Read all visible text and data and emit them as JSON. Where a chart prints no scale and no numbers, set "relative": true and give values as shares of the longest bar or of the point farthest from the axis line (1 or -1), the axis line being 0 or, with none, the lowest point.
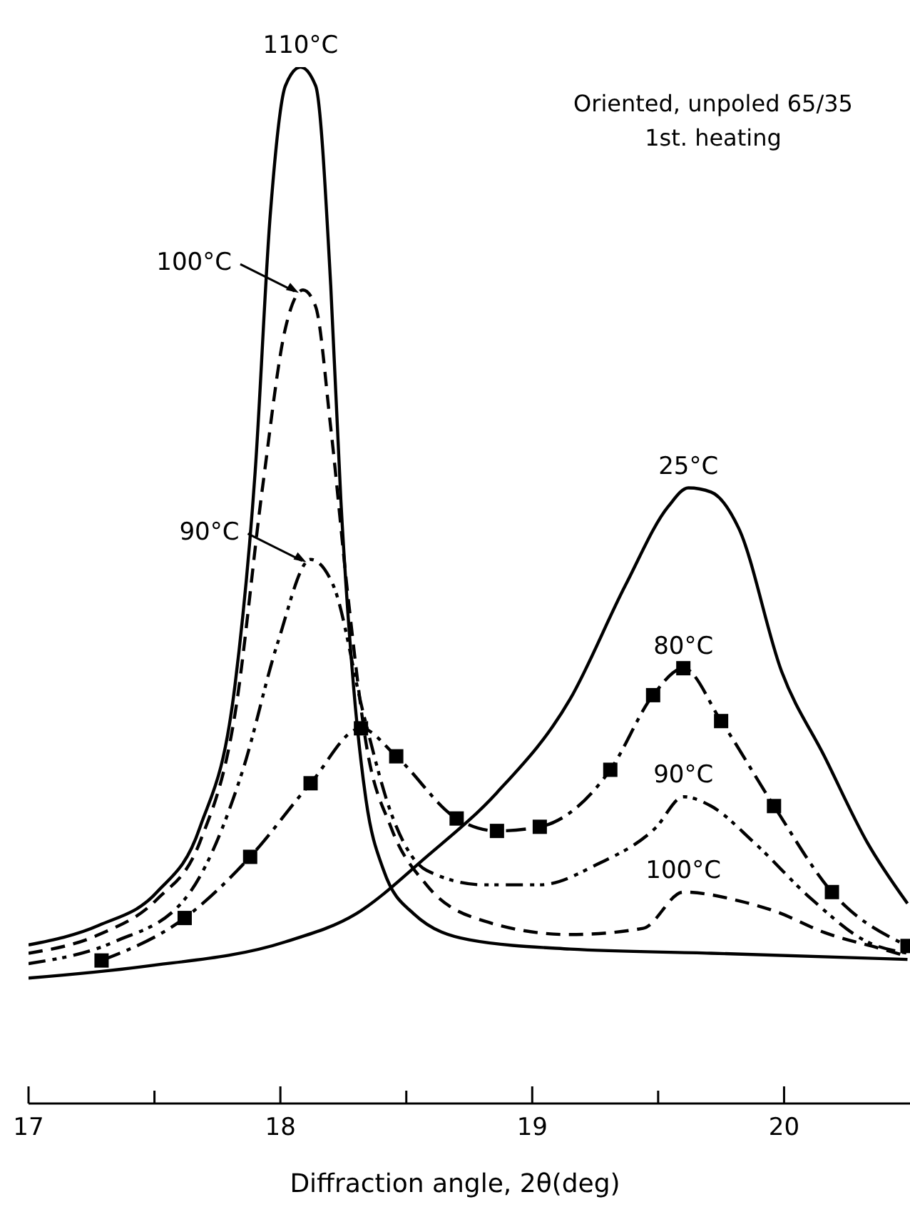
{
  "chart_data": {
    "type": "line",
    "relative": true,
    "title": "Oriented, unpoled 65/35",
    "subtitle": "1st. heating",
    "xlabel": "Diffraction angle, 2θ(deg)",
    "xlim": [
      17,
      20.5
    ],
    "xticks": [
      17,
      {
        "value": 17.5,
        "label": null
      },
      18,
      {
        "value": 18.5,
        "label": null
      },
      19,
      {
        "value": 19.5,
        "label": null
      },
      20
    ],
    "series": [
      {
        "color": "#000000",
        "line_style": "solid",
        "marker": "none",
        "x": [
          17.0,
          17.28,
          17.51,
          17.68,
          17.82,
          17.9,
          17.96,
          18.02,
          18.08,
          18.14,
          18.2,
          18.24,
          18.29,
          18.34,
          18.41,
          18.53,
          18.75,
          19.15,
          19.71,
          20.49
        ],
        "values": [
          0.153,
          0.172,
          0.204,
          0.266,
          0.404,
          0.61,
          0.858,
          0.982,
          1.0,
          0.982,
          0.789,
          0.583,
          0.404,
          0.293,
          0.225,
          0.183,
          0.158,
          0.149,
          0.145,
          0.139
        ]
      },
      {
        "color": "#000000",
        "line_style": "dashed",
        "marker": "none",
        "x": [
          17.0,
          17.28,
          17.51,
          17.68,
          17.82,
          17.93,
          18.02,
          18.09,
          18.14,
          18.2,
          18.27,
          18.34,
          18.44,
          18.58,
          18.81,
          19.15,
          19.44,
          19.6,
          19.83,
          19.97,
          20.16,
          20.39,
          20.49
        ],
        "values": [
          0.145,
          0.163,
          0.197,
          0.252,
          0.376,
          0.596,
          0.748,
          0.785,
          0.769,
          0.652,
          0.486,
          0.348,
          0.266,
          0.211,
          0.176,
          0.163,
          0.169,
          0.204,
          0.195,
          0.185,
          0.165,
          0.149,
          0.142
        ]
      },
      {
        "color": "#000000",
        "line_style": "dashdotdot",
        "marker": "none",
        "x": [
          17.0,
          17.34,
          17.62,
          17.85,
          17.99,
          18.12,
          18.21,
          18.33,
          18.44,
          18.58,
          18.81,
          19.03,
          19.26,
          19.49,
          19.6,
          19.71,
          19.88,
          20.11,
          20.33,
          20.49
        ],
        "values": [
          0.135,
          0.156,
          0.197,
          0.321,
          0.445,
          0.525,
          0.5,
          0.376,
          0.28,
          0.225,
          0.211,
          0.211,
          0.231,
          0.266,
          0.296,
          0.287,
          0.252,
          0.197,
          0.156,
          0.145
        ]
      },
      {
        "color": "#000000",
        "line_style": "dashdot",
        "marker": "square",
        "x": [
          17.29,
          17.62,
          17.88,
          18.12,
          18.32,
          18.46,
          18.7,
          18.86,
          19.03,
          19.31,
          19.48,
          19.6,
          19.75,
          19.96,
          20.19,
          20.49
        ],
        "values": [
          0.138,
          0.179,
          0.238,
          0.309,
          0.362,
          0.335,
          0.275,
          0.263,
          0.267,
          0.322,
          0.394,
          0.42,
          0.369,
          0.287,
          0.204,
          0.152
        ]
      },
      {
        "color": "#000000",
        "line_style": "solid",
        "marker": "none",
        "x": [
          17.0,
          17.45,
          18.02,
          18.3,
          18.58,
          18.86,
          19.15,
          19.37,
          19.54,
          19.62,
          19.71,
          19.82,
          19.99,
          20.16,
          20.33,
          20.49
        ],
        "values": [
          0.121,
          0.132,
          0.156,
          0.183,
          0.238,
          0.3,
          0.39,
          0.5,
          0.576,
          0.594,
          0.59,
          0.555,
          0.417,
          0.335,
          0.252,
          0.193
        ]
      }
    ],
    "annotations": [
      {
        "text": "110°C",
        "x": 18.08,
        "y": 1.0
      },
      {
        "text": "100°C",
        "x": 18.09,
        "y": 0.785
      },
      {
        "text": "90°C",
        "x": 18.12,
        "y": 0.525
      },
      {
        "text": "25°C",
        "x": 19.62,
        "y": 0.594
      },
      {
        "text": "80°C",
        "x": 19.6,
        "y": 0.42
      },
      {
        "text": "90°C",
        "x": 19.6,
        "y": 0.296
      },
      {
        "text": "100°C",
        "x": 19.6,
        "y": 0.204
      }
    ]
  }
}
